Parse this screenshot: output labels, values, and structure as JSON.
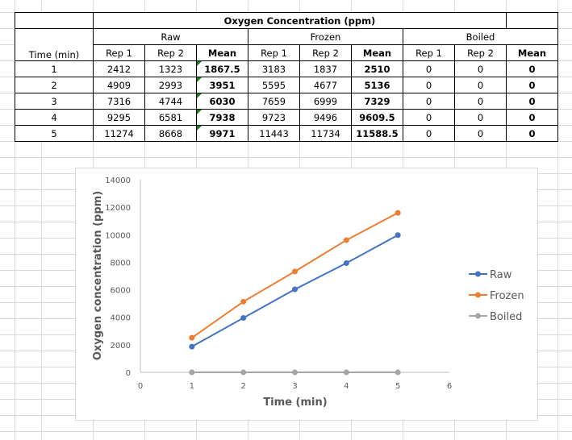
{
  "table": {
    "title": "Oxygen Concentration (ppm)",
    "time_header": "Time (min)",
    "groups": [
      "Raw",
      "Frozen",
      "Boiled"
    ],
    "subheaders": [
      "Rep 1",
      "Rep 2",
      "Mean",
      "Rep 1",
      "Rep 2",
      "Mean",
      "Rep 1",
      "Rep 2",
      "Mean"
    ],
    "rows": [
      [
        "1",
        "2412",
        "1323",
        "1867.5",
        "3183",
        "1837",
        "2510",
        "0",
        "0",
        "0"
      ],
      [
        "2",
        "4909",
        "2993",
        "3951",
        "5595",
        "4677",
        "5136",
        "0",
        "0",
        "0"
      ],
      [
        "3",
        "7316",
        "4744",
        "6030",
        "7659",
        "6999",
        "7329",
        "0",
        "0",
        "0"
      ],
      [
        "4",
        "9295",
        "6581",
        "7938",
        "9723",
        "9496",
        "9609.5",
        "0",
        "0",
        "0"
      ],
      [
        "5",
        "11274",
        "8668",
        "9971",
        "11443",
        "11734",
        "11588.5",
        "0",
        "0",
        "0"
      ]
    ]
  },
  "chart_data": {
    "type": "scatter",
    "xlabel": "Time (min)",
    "ylabel": "Oxygen concentration (ppm)",
    "xlim": [
      0,
      6
    ],
    "ylim": [
      0,
      14000
    ],
    "x_ticks": [
      "0",
      "1",
      "2",
      "3",
      "4",
      "5",
      "6"
    ],
    "y_ticks": [
      "0",
      "2000",
      "4000",
      "6000",
      "8000",
      "10000",
      "12000",
      "14000"
    ],
    "grid": false,
    "legend_position": "right",
    "x": [
      1,
      2,
      3,
      4,
      5
    ],
    "series": [
      {
        "name": "Raw",
        "color": "#4472c4",
        "values": [
          1867.5,
          3951,
          6030,
          7938,
          9971
        ]
      },
      {
        "name": "Frozen",
        "color": "#ed7d31",
        "values": [
          2510,
          5136,
          7329,
          9609.5,
          11588.5
        ]
      },
      {
        "name": "Boiled",
        "color": "#a5a5a5",
        "values": [
          0,
          0,
          0,
          0,
          0
        ]
      }
    ]
  }
}
